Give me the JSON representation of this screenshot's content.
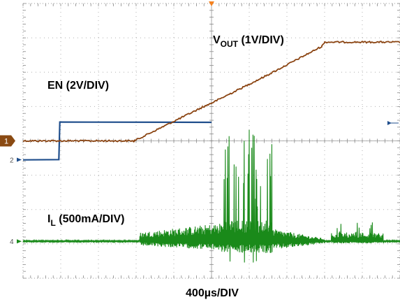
{
  "chart_data": {
    "type": "line",
    "title": "",
    "xlabel": "400µs/DIV",
    "x_divisions": 10,
    "y_divisions": 8,
    "grid": true,
    "trigger_marker_color": "#f58220",
    "series": [
      {
        "name": "EN (2V/DIV)",
        "channel": "2",
        "color": "#1f4e8c",
        "label": {
          "main": "EN (2V/DIV)",
          "sub": ""
        },
        "x_div": [
          0,
          1.9,
          1.95,
          10
        ],
        "y_div": [
          -1.1,
          -1.1,
          1.1,
          1.1
        ]
      },
      {
        "name": "VOUT (1V/DIV)",
        "channel": "1",
        "color": "#8b4513",
        "label": {
          "main": "V",
          "sub": "OUT",
          "rest": " (1V/DIV)"
        },
        "x_div": [
          0,
          5.9,
          9.5,
          10,
          13,
          15.85,
          16,
          20
        ],
        "y_div": [
          0,
          0,
          1.95,
          2.2,
          3.85,
          5.5,
          5.75,
          5.75
        ]
      },
      {
        "name": "IL (500mA/DIV)",
        "channel": "4",
        "color": "#1a8a1a",
        "label": {
          "main": "I",
          "sub": "L",
          "rest": " (500mA/DIV)"
        },
        "baseline_div": -5.85,
        "switching_start_div": 6.2,
        "burst_start_div": 10.5,
        "burst_end_div": 13.2,
        "decay_end_div": 16,
        "end_pulse_start_div": 16.35,
        "end_pulse_end_div": 19.1
      }
    ],
    "ticks": {
      "ch1": "1",
      "ch2": "2",
      "ch4": "4"
    }
  }
}
